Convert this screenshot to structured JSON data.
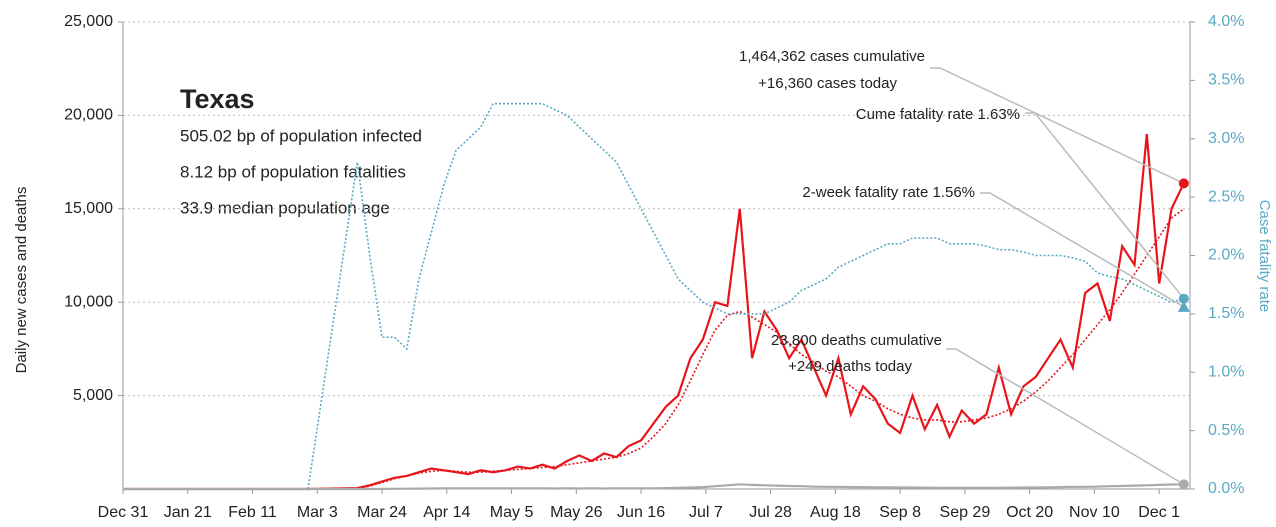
{
  "chart_data": {
    "type": "line",
    "y_label": "Daily new cases and deaths",
    "y2_label": "Case fatality rate",
    "info": {
      "title": "Texas",
      "lines": [
        "505.02 bp of population infected",
        "8.12 bp of population fatalities",
        "33.9 median population age"
      ]
    },
    "x": [
      0,
      20,
      40,
      60,
      76,
      80,
      84,
      88,
      92,
      96,
      100,
      104,
      108,
      112,
      116,
      120,
      124,
      128,
      132,
      136,
      140,
      144,
      148,
      152,
      156,
      160,
      164,
      168,
      172,
      176,
      180,
      184,
      188,
      192,
      196,
      200,
      204,
      208,
      212,
      216,
      220,
      224,
      228,
      232,
      236,
      240,
      244,
      248,
      252,
      256,
      260,
      264,
      268,
      272,
      276,
      280,
      284,
      288,
      292,
      296,
      300,
      304,
      308,
      312,
      316,
      320,
      324,
      328,
      332,
      336,
      340,
      344
    ],
    "xlim": [
      0,
      346
    ],
    "xticks": [
      {
        "value": 0,
        "label": "Dec 31"
      },
      {
        "value": 21,
        "label": "Jan 21"
      },
      {
        "value": 42,
        "label": "Feb 11"
      },
      {
        "value": 63,
        "label": "Mar 3"
      },
      {
        "value": 84,
        "label": "Mar 24"
      },
      {
        "value": 105,
        "label": "Apr 14"
      },
      {
        "value": 126,
        "label": "May 5"
      },
      {
        "value": 147,
        "label": "May 26"
      },
      {
        "value": 168,
        "label": "Jun 16"
      },
      {
        "value": 189,
        "label": "Jul 7"
      },
      {
        "value": 210,
        "label": "Jul 28"
      },
      {
        "value": 231,
        "label": "Aug 18"
      },
      {
        "value": 252,
        "label": "Sep 8"
      },
      {
        "value": 273,
        "label": "Sep 29"
      },
      {
        "value": 294,
        "label": "Oct 20"
      },
      {
        "value": 315,
        "label": "Nov 10"
      },
      {
        "value": 336,
        "label": "Dec 1"
      }
    ],
    "ylim": [
      0,
      25000
    ],
    "yticks": [
      {
        "value": 5000,
        "label": "5,000"
      },
      {
        "value": 10000,
        "label": "10,000"
      },
      {
        "value": 15000,
        "label": "15,000"
      },
      {
        "value": 20000,
        "label": "20,000"
      },
      {
        "value": 25000,
        "label": "25,000"
      }
    ],
    "y2lim": [
      0,
      4
    ],
    "y2ticks": [
      {
        "value": 0,
        "label": "0.0%"
      },
      {
        "value": 0.5,
        "label": "0.5%"
      },
      {
        "value": 1,
        "label": "1.0%"
      },
      {
        "value": 1.5,
        "label": "1.5%"
      },
      {
        "value": 2,
        "label": "2.0%"
      },
      {
        "value": 2.5,
        "label": "2.5%"
      },
      {
        "value": 3,
        "label": "3.0%"
      },
      {
        "value": 3.5,
        "label": "3.5%"
      },
      {
        "value": 4,
        "label": "4.0%"
      }
    ],
    "grid": true,
    "series": [
      {
        "name": "Daily cases",
        "color": "#e8141b",
        "dash": false,
        "values": [
          0,
          0,
          0,
          0,
          50,
          200,
          400,
          600,
          700,
          900,
          1100,
          1000,
          900,
          800,
          1000,
          900,
          1000,
          1200,
          1100,
          1300,
          1100,
          1500,
          1800,
          1500,
          1900,
          1700,
          2300,
          2600,
          3500,
          4400,
          5000,
          7000,
          8000,
          10000,
          9800,
          15000,
          7000,
          9500,
          8500,
          7000,
          8000,
          6500,
          5000,
          7000,
          4000,
          5500,
          4800,
          3500,
          3000,
          5000,
          3200,
          4500,
          2800,
          4200,
          3500,
          4000,
          6500,
          4000,
          5500,
          6000,
          7000,
          8000,
          6500,
          10500,
          11000,
          9000,
          13000,
          12000,
          19000,
          11000,
          15000,
          16360
        ]
      },
      {
        "name": "Cases 7-day average",
        "color": "#e8141b",
        "dash": true,
        "values": [
          0,
          0,
          0,
          0,
          30,
          150,
          350,
          550,
          700,
          850,
          950,
          1000,
          950,
          900,
          900,
          950,
          1000,
          1050,
          1100,
          1150,
          1200,
          1300,
          1400,
          1500,
          1600,
          1700,
          1900,
          2200,
          2800,
          3500,
          4500,
          5800,
          7200,
          8500,
          9300,
          9500,
          9200,
          8800,
          8400,
          7800,
          7200,
          6800,
          6300,
          6000,
          5500,
          5000,
          4700,
          4300,
          4000,
          3800,
          3700,
          3700,
          3600,
          3600,
          3700,
          3800,
          4000,
          4300,
          4700,
          5200,
          5800,
          6500,
          7200,
          8000,
          8800,
          9600,
          10500,
          11500,
          12500,
          13500,
          14500,
          15000
        ]
      },
      {
        "name": "Daily deaths",
        "color": "#aaaaaa",
        "dash": false,
        "values": [
          0,
          0,
          0,
          0,
          0,
          2,
          5,
          10,
          15,
          20,
          25,
          30,
          30,
          35,
          30,
          35,
          30,
          35,
          30,
          30,
          25,
          30,
          25,
          30,
          25,
          30,
          30,
          35,
          40,
          50,
          60,
          80,
          100,
          150,
          200,
          250,
          220,
          200,
          180,
          160,
          150,
          130,
          120,
          110,
          100,
          100,
          90,
          90,
          80,
          80,
          70,
          70,
          60,
          60,
          60,
          60,
          70,
          70,
          80,
          80,
          90,
          100,
          110,
          120,
          130,
          150,
          160,
          180,
          200,
          220,
          240,
          249
        ]
      },
      {
        "name": "Case fatality rate",
        "color": "#5aa9c4",
        "dash": true,
        "axis": "y2",
        "values": [
          null,
          null,
          null,
          0,
          2.8,
          2.0,
          1.3,
          1.3,
          1.2,
          1.8,
          2.2,
          2.6,
          2.9,
          3.0,
          3.1,
          3.3,
          3.3,
          3.3,
          3.3,
          3.3,
          3.25,
          3.2,
          3.1,
          3.0,
          2.9,
          2.8,
          2.6,
          2.4,
          2.2,
          2.0,
          1.8,
          1.7,
          1.6,
          1.55,
          1.5,
          1.5,
          1.5,
          1.5,
          1.55,
          1.6,
          1.7,
          1.75,
          1.8,
          1.9,
          1.95,
          2.0,
          2.05,
          2.1,
          2.1,
          2.15,
          2.15,
          2.15,
          2.1,
          2.1,
          2.1,
          2.08,
          2.05,
          2.05,
          2.03,
          2.0,
          2.0,
          2.0,
          1.98,
          1.95,
          1.85,
          1.82,
          1.8,
          1.75,
          1.7,
          1.65,
          1.6,
          1.63
        ]
      }
    ],
    "annotations": [
      {
        "text": "1,464,362 cases cumulative"
      },
      {
        "text": "+16,360 cases today"
      },
      {
        "text": "Cume fatality rate 1.63%"
      },
      {
        "text": "2-week fatality rate 1.56%",
        "value": 1.56,
        "axis": "y2"
      },
      {
        "text": "23,800 deaths cumulative"
      },
      {
        "text": "+249 deaths today"
      }
    ]
  }
}
